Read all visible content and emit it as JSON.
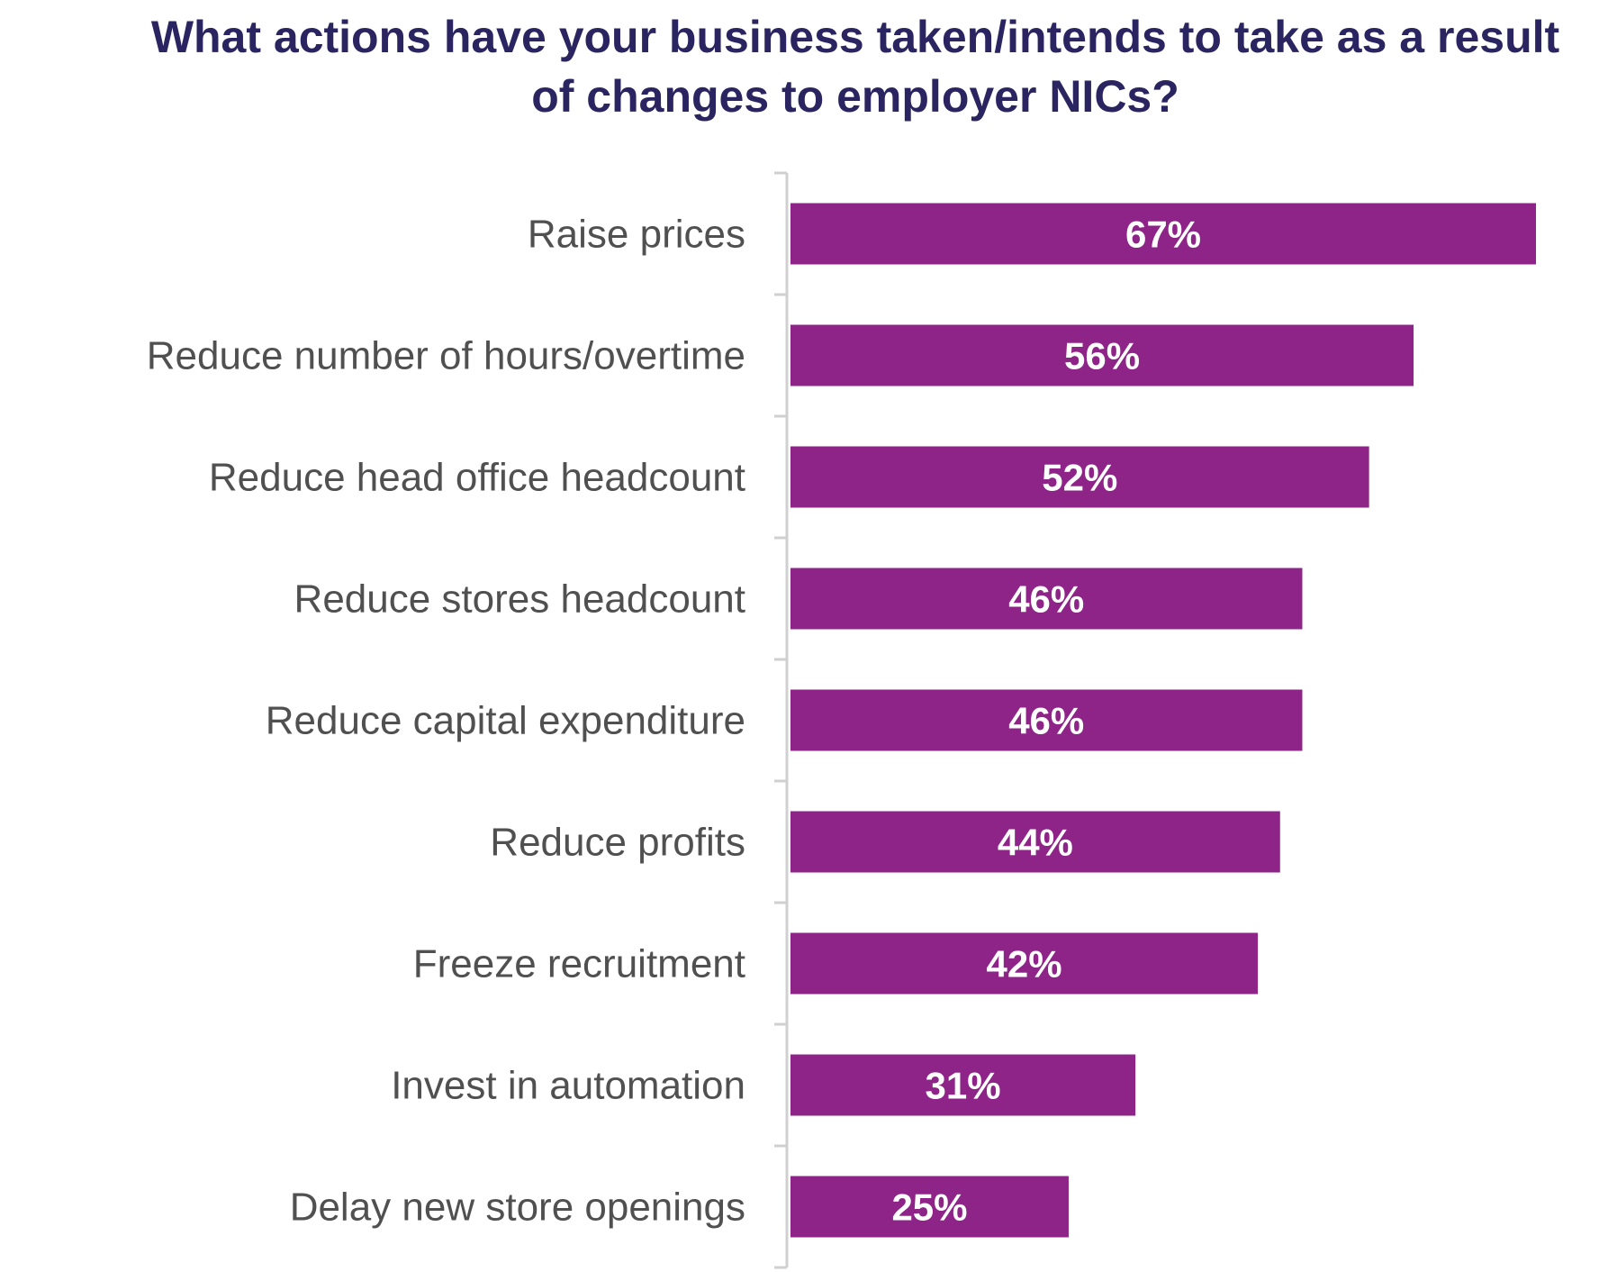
{
  "chart_data": {
    "type": "bar",
    "orientation": "horizontal",
    "title": "What actions have your business taken/intends to take as a result of changes to employer NICs?",
    "categories": [
      "Raise prices",
      "Reduce number of hours/overtime",
      "Reduce head office headcount",
      "Reduce stores headcount",
      "Reduce capital expenditure",
      "Reduce profits",
      "Freeze recruitment",
      "Invest in automation",
      "Delay new store openings"
    ],
    "values": [
      67,
      56,
      52,
      46,
      46,
      44,
      42,
      31,
      25
    ],
    "value_labels": [
      "67%",
      "56%",
      "52%",
      "46%",
      "46%",
      "44%",
      "42%",
      "31%",
      "25%"
    ],
    "unit": "%",
    "xlim": [
      0,
      67
    ],
    "grid": false,
    "legend": "none",
    "colors": {
      "bar": "#8e2388",
      "bar_label": "#ffffff",
      "category_label": "#505050",
      "axis": "#d0d0d0",
      "title": "#2a2560"
    }
  }
}
